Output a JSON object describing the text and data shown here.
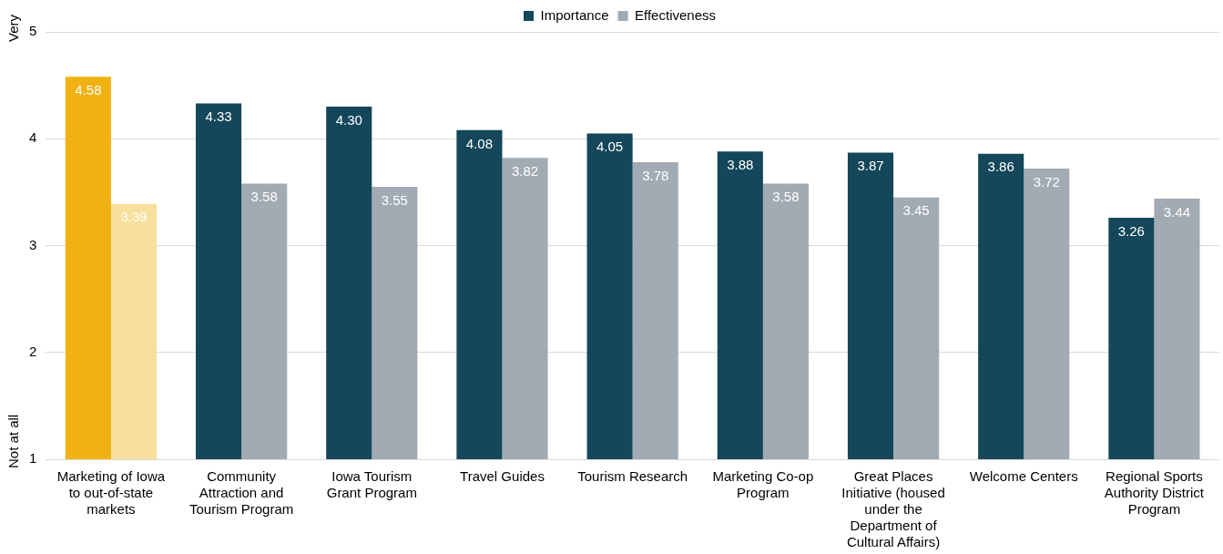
{
  "chart_data": {
    "type": "bar",
    "categories": [
      "Marketing of Iowa to out-of-state markets",
      "Community Attraction and Tourism Program",
      "Iowa Tourism Grant Program",
      "Travel Guides",
      "Tourism Research",
      "Marketing Co-op Program",
      "Great Places Initiative (housed under the Department of Cultural Affairs)",
      "Welcome Centers",
      "Regional Sports Authority District Program"
    ],
    "series": [
      {
        "name": "Importance",
        "color": "#14475a",
        "colors": [
          "#f0b112",
          "#14475a",
          "#14475a",
          "#14475a",
          "#14475a",
          "#14475a",
          "#14475a",
          "#14475a",
          "#14475a"
        ],
        "values": [
          4.58,
          4.33,
          4.3,
          4.08,
          4.05,
          3.88,
          3.87,
          3.86,
          3.26
        ],
        "value_labels": [
          "4.58",
          "4.33",
          "4.30",
          "4.08",
          "4.05",
          "3.88",
          "3.87",
          "3.86",
          "3.26"
        ]
      },
      {
        "name": "Effectiveness",
        "color": "#a2abb3",
        "colors": [
          "#f7df9c",
          "#a2abb3",
          "#a2abb3",
          "#a2abb3",
          "#a2abb3",
          "#a2abb3",
          "#a2abb3",
          "#a2abb3",
          "#a2abb3"
        ],
        "values": [
          3.39,
          3.58,
          3.55,
          3.82,
          3.78,
          3.58,
          3.45,
          3.72,
          3.44
        ],
        "value_labels": [
          "3.39",
          "3.58",
          "3.55",
          "3.82",
          "3.78",
          "3.58",
          "3.45",
          "3.72",
          "3.44"
        ]
      }
    ],
    "ylim": [
      1,
      5
    ],
    "yticks": [
      1,
      2,
      3,
      4,
      5
    ],
    "grid": "y",
    "legend": "top",
    "data_labels": true,
    "annotations": [
      "Very",
      "Not at all"
    ]
  }
}
